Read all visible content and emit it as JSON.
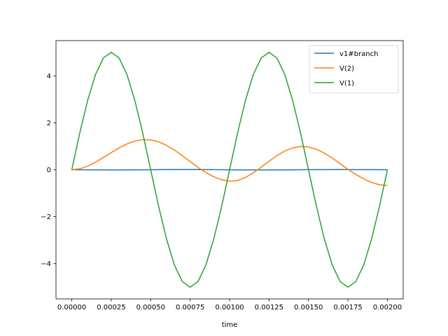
{
  "chart_data": {
    "type": "line",
    "title": "",
    "xlabel": "time",
    "ylabel": "",
    "xlim": [
      -0.0001,
      0.0021
    ],
    "ylim": [
      -5.5,
      5.5
    ],
    "grid": false,
    "legend_position": "top-right",
    "x_ticks": [
      0.0,
      0.00025,
      0.0005,
      0.00075,
      0.001,
      0.00125,
      0.0015,
      0.00175,
      0.002
    ],
    "x_tick_labels": [
      "0.00000",
      "0.00025",
      "0.00050",
      "0.00075",
      "0.00100",
      "0.00125",
      "0.00150",
      "0.00175",
      "0.00200"
    ],
    "y_ticks": [
      -4,
      -2,
      0,
      2,
      4
    ],
    "y_tick_labels": [
      "−4",
      "−2",
      "0",
      "2",
      "4"
    ],
    "series": [
      {
        "name": "v1#branch",
        "color": "#1f77b4",
        "x": [
          0,
          0.0001,
          0.0002,
          0.0003,
          0.0004,
          0.0005,
          0.0006,
          0.0007,
          0.0008,
          0.0009,
          0.001,
          0.0011,
          0.0012,
          0.0013,
          0.0014,
          0.0015,
          0.0016,
          0.0017,
          0.0018,
          0.0019,
          0.002
        ],
        "y": [
          0,
          -0.005,
          -0.008,
          -0.008,
          -0.005,
          0,
          0.006,
          0.009,
          0.008,
          0.004,
          -0.002,
          -0.006,
          -0.008,
          -0.006,
          -0.002,
          0.002,
          0.005,
          0.006,
          0.005,
          0.002,
          0
        ]
      },
      {
        "name": "V(2)",
        "color": "#ff7f0e",
        "x": [
          0,
          5e-05,
          0.0001,
          0.00015,
          0.0002,
          0.00025,
          0.0003,
          0.00035,
          0.0004,
          0.00045,
          0.0005,
          0.00055,
          0.0006,
          0.00065,
          0.0007,
          0.00075,
          0.0008,
          0.00085,
          0.0009,
          0.00095,
          0.001,
          0.00105,
          0.0011,
          0.00115,
          0.0012,
          0.00125,
          0.0013,
          0.00135,
          0.0014,
          0.00145,
          0.0015,
          0.00155,
          0.0016,
          0.00165,
          0.0017,
          0.00175,
          0.0018,
          0.00185,
          0.0019,
          0.00195,
          0.002
        ],
        "y": [
          0,
          0.04,
          0.15,
          0.32,
          0.52,
          0.73,
          0.93,
          1.1,
          1.22,
          1.28,
          1.27,
          1.19,
          1.04,
          0.84,
          0.6,
          0.35,
          0.1,
          -0.12,
          -0.3,
          -0.43,
          -0.49,
          -0.46,
          -0.33,
          -0.13,
          0.11,
          0.36,
          0.6,
          0.8,
          0.93,
          0.99,
          0.97,
          0.87,
          0.71,
          0.5,
          0.26,
          0.02,
          -0.2,
          -0.39,
          -0.54,
          -0.64,
          -0.67
        ]
      },
      {
        "name": "V(1)",
        "color": "#2ca02c",
        "x": [
          0,
          5e-05,
          0.0001,
          0.00015,
          0.0002,
          0.00025,
          0.0003,
          0.00035,
          0.0004,
          0.00045,
          0.0005,
          0.00055,
          0.0006,
          0.00065,
          0.0007,
          0.00075,
          0.0008,
          0.00085,
          0.0009,
          0.00095,
          0.001,
          0.00105,
          0.0011,
          0.00115,
          0.0012,
          0.00125,
          0.0013,
          0.00135,
          0.0014,
          0.00145,
          0.0015,
          0.00155,
          0.0016,
          0.00165,
          0.0017,
          0.00175,
          0.0018,
          0.00185,
          0.0019,
          0.00195,
          0.002
        ],
        "y": [
          0,
          1.55,
          2.94,
          4.05,
          4.76,
          5.0,
          4.76,
          4.05,
          2.94,
          1.55,
          0,
          -1.55,
          -2.94,
          -4.05,
          -4.76,
          -5.0,
          -4.76,
          -4.05,
          -2.94,
          -1.55,
          0,
          1.55,
          2.94,
          4.05,
          4.76,
          5.0,
          4.76,
          4.05,
          2.94,
          1.55,
          0,
          -1.55,
          -2.94,
          -4.05,
          -4.76,
          -5.0,
          -4.76,
          -4.05,
          -2.94,
          -1.55,
          0
        ]
      }
    ]
  }
}
